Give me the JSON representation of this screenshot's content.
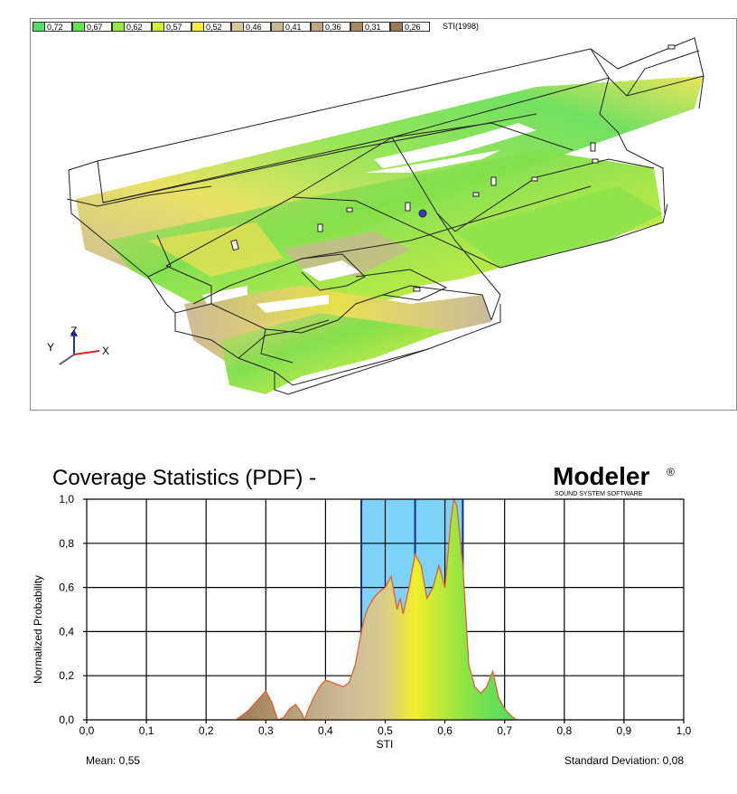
{
  "legend": {
    "items": [
      {
        "label": "0,72",
        "color": "#55dd66"
      },
      {
        "label": "0,67",
        "color": "#66e04f"
      },
      {
        "label": "0,62",
        "color": "#99e640"
      },
      {
        "label": "0,57",
        "color": "#ccee33"
      },
      {
        "label": "0,52",
        "color": "#f2ec3a"
      },
      {
        "label": "0,46",
        "color": "#d6c89a"
      },
      {
        "label": "0,41",
        "color": "#c9b795"
      },
      {
        "label": "0,36",
        "color": "#bda582"
      },
      {
        "label": "0,31",
        "color": "#a88a62"
      },
      {
        "label": "0,26",
        "color": "#9c7a55"
      }
    ],
    "title": "STI(1998)"
  },
  "axes_labels": {
    "x": "X",
    "y": "Y",
    "z": "Z"
  },
  "brand": {
    "name": "Modeler",
    "mark": "®",
    "tagline": "SOUND SYSTEM SOFTWARE"
  },
  "chart_data": {
    "type": "area",
    "title": "Coverage Statistics (PDF) -",
    "xlabel": "STI",
    "ylabel": "Normalized Probability",
    "xlim": [
      0.0,
      1.0
    ],
    "ylim": [
      0.0,
      1.0
    ],
    "xticks": [
      "0,0",
      "0,1",
      "0,2",
      "0,3",
      "0,4",
      "0,5",
      "0,6",
      "0,7",
      "0,8",
      "0,9",
      "1,0"
    ],
    "yticks": [
      "0,0",
      "0,2",
      "0,4",
      "0,6",
      "0,8",
      "1,0"
    ],
    "grid": true,
    "highlight_band": [
      0.46,
      0.63
    ],
    "band_markers": [
      0.46,
      0.55,
      0.63
    ],
    "x": [
      0.25,
      0.27,
      0.29,
      0.3,
      0.31,
      0.32,
      0.33,
      0.34,
      0.35,
      0.36,
      0.365,
      0.37,
      0.38,
      0.39,
      0.4,
      0.41,
      0.43,
      0.44,
      0.45,
      0.46,
      0.465,
      0.47,
      0.48,
      0.49,
      0.5,
      0.51,
      0.52,
      0.525,
      0.53,
      0.54,
      0.55,
      0.56,
      0.57,
      0.58,
      0.59,
      0.6,
      0.61,
      0.615,
      0.62,
      0.63,
      0.64,
      0.65,
      0.66,
      0.67,
      0.68,
      0.69,
      0.7,
      0.71,
      0.72
    ],
    "y": [
      0.0,
      0.04,
      0.1,
      0.13,
      0.08,
      0.0,
      0.01,
      0.05,
      0.07,
      0.03,
      0.0,
      0.04,
      0.1,
      0.15,
      0.18,
      0.17,
      0.15,
      0.17,
      0.25,
      0.4,
      0.46,
      0.5,
      0.55,
      0.58,
      0.6,
      0.65,
      0.5,
      0.55,
      0.48,
      0.6,
      0.75,
      0.7,
      0.55,
      0.6,
      0.7,
      0.6,
      0.9,
      1.0,
      0.97,
      0.7,
      0.25,
      0.15,
      0.12,
      0.15,
      0.22,
      0.1,
      0.05,
      0.02,
      0.0
    ],
    "mean": "Mean: 0,55",
    "std": "Standard Deviation: 0,08"
  }
}
